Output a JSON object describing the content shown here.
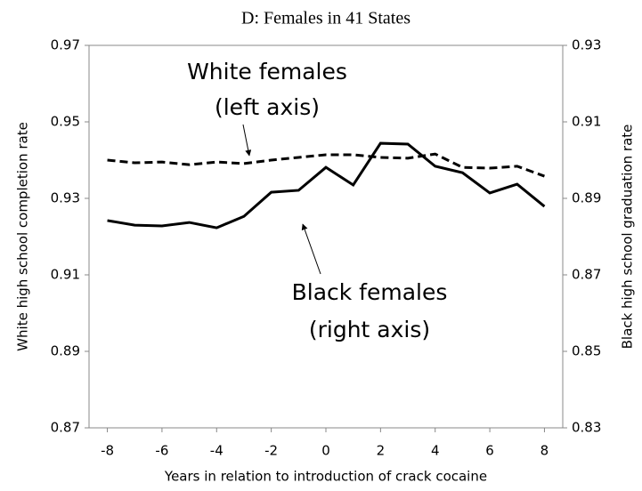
{
  "chart_data": {
    "type": "line",
    "title": "D: Females in 41 States",
    "x_label": "Years in relation to introduction of crack cocaine",
    "y_label": "White high school completion rate",
    "y2_label": "Black high school graduation rate",
    "x": [
      -8,
      -7,
      -6,
      -5,
      -4,
      -3,
      -2,
      -1,
      0,
      1,
      2,
      3,
      4,
      5,
      6,
      7,
      8
    ],
    "series": [
      {
        "name": "White females",
        "color": "#000000",
        "dash": true,
        "axis": "y",
        "values": [
          0.94,
          0.9393,
          0.9395,
          0.9388,
          0.9395,
          0.9391,
          0.94,
          0.9407,
          0.9414,
          0.9414,
          0.9407,
          0.9405,
          0.9416,
          0.9381,
          0.9379,
          0.9384,
          0.9358
        ]
      },
      {
        "name": "Black females",
        "color": "#000000",
        "dash": false,
        "axis": "y2",
        "values": [
          0.8842,
          0.883,
          0.8828,
          0.8837,
          0.8823,
          0.8853,
          0.8916,
          0.8921,
          0.8981,
          0.8935,
          0.9044,
          0.9042,
          0.8984,
          0.8967,
          0.8914,
          0.8937,
          0.8879
        ]
      }
    ],
    "annotations": [
      [
        "White females",
        "(left axis)"
      ],
      [
        "Black females",
        "(right axis)"
      ]
    ],
    "xlim": [
      -8.67,
      8.67
    ],
    "xticks": [
      -8,
      -6,
      -4,
      -2,
      0,
      2,
      4,
      6,
      8
    ],
    "ylim": [
      0.87,
      0.97
    ],
    "yticks": [
      0.87,
      0.89,
      0.91,
      0.93,
      0.95,
      0.97
    ],
    "y2lim": [
      0.83,
      0.93
    ],
    "y2ticks": [
      0.83,
      0.85,
      0.87,
      0.89,
      0.91,
      0.93
    ],
    "grid": false
  }
}
